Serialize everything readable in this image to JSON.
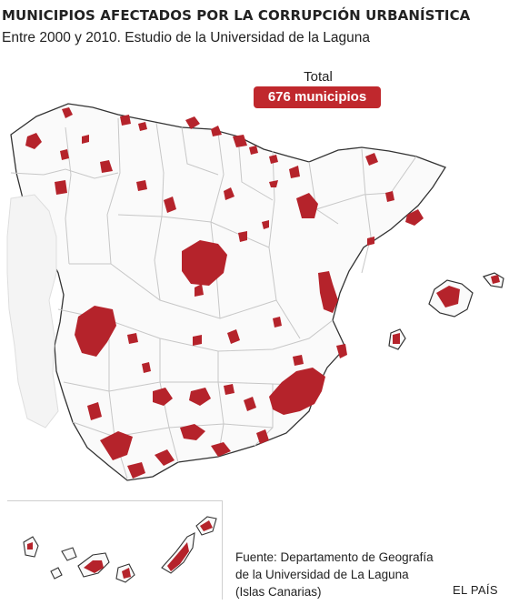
{
  "header": {
    "title": "MUNICIPIOS AFECTADOS POR LA CORRUPCIÓN URBANÍSTICA",
    "subtitle": "Entre 2000 y 2010. Estudio de la Universidad de la Laguna"
  },
  "total": {
    "label": "Total",
    "value": "676 municipios"
  },
  "source": {
    "line1": "Fuente: Departamento de Geografía",
    "line2": "de la Universidad de La Laguna",
    "line3": "(Islas Canarias)"
  },
  "credit": "EL PAÍS",
  "colors": {
    "affected": "#b5232b",
    "land": "#fafafa",
    "province_border": "#c7c7c7",
    "coast": "#333333",
    "badge": "#c0282d"
  }
}
